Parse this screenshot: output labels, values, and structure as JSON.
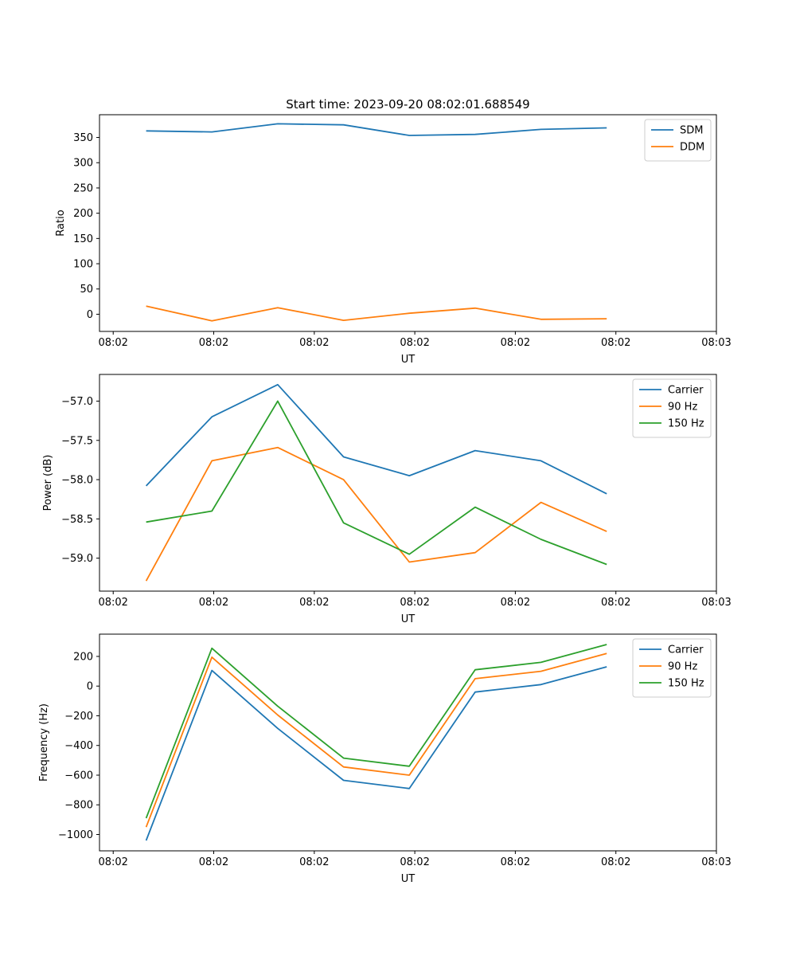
{
  "figure": {
    "title": "Start time: 2023-09-20 08:02:01.688549"
  },
  "chart_data": [
    {
      "type": "line",
      "xlabel": "UT",
      "ylabel": "Ratio",
      "x": [
        0.6,
        1.8,
        3.0,
        4.2,
        5.4,
        6.6,
        7.8,
        9.0
      ],
      "xlim": [
        -0.25,
        11.0
      ],
      "x_ticks": [
        0,
        1.833,
        3.667,
        5.5,
        7.333,
        9.167,
        11.0
      ],
      "x_tick_labels": [
        "08:02",
        "08:02",
        "08:02",
        "08:02",
        "08:02",
        "08:02",
        "08:03"
      ],
      "ylim": [
        -34,
        395
      ],
      "y_ticks": [
        0,
        50,
        100,
        150,
        200,
        250,
        300,
        350
      ],
      "y_tick_labels": [
        "0",
        "50",
        "100",
        "150",
        "200",
        "250",
        "300",
        "350"
      ],
      "legend": "top-right",
      "series": [
        {
          "name": "SDM",
          "color": "#1f77b4",
          "values": [
            363,
            361,
            377,
            375,
            354,
            356,
            366,
            369
          ]
        },
        {
          "name": "DDM",
          "color": "#ff7f0e",
          "values": [
            16,
            -13,
            13,
            -12,
            2,
            12,
            -10,
            -9
          ]
        }
      ]
    },
    {
      "type": "line",
      "xlabel": "UT",
      "ylabel": "Power (dB)",
      "x": [
        0.6,
        1.8,
        3.0,
        4.2,
        5.4,
        6.6,
        7.8,
        9.0
      ],
      "xlim": [
        -0.25,
        11.0
      ],
      "x_ticks": [
        0,
        1.833,
        3.667,
        5.5,
        7.333,
        9.167,
        11.0
      ],
      "x_tick_labels": [
        "08:02",
        "08:02",
        "08:02",
        "08:02",
        "08:02",
        "08:02",
        "08:03"
      ],
      "ylim": [
        -59.42,
        -56.66
      ],
      "y_ticks": [
        -59.0,
        -58.5,
        -58.0,
        -57.5,
        -57.0
      ],
      "y_tick_labels": [
        "−59.0",
        "−58.5",
        "−58.0",
        "−57.5",
        "−57.0"
      ],
      "legend": "top-right",
      "series": [
        {
          "name": "Carrier",
          "color": "#1f77b4",
          "values": [
            -58.08,
            -57.2,
            -56.79,
            -57.71,
            -57.95,
            -57.63,
            -57.76,
            -58.18
          ]
        },
        {
          "name": "90 Hz",
          "color": "#ff7f0e",
          "values": [
            -59.29,
            -57.76,
            -57.59,
            -58.0,
            -59.05,
            -58.93,
            -58.29,
            -58.66
          ]
        },
        {
          "name": "150 Hz",
          "color": "#2ca02c",
          "values": [
            -58.54,
            -58.4,
            -57.0,
            -58.55,
            -58.95,
            -58.35,
            -58.76,
            -59.08
          ]
        }
      ]
    },
    {
      "type": "line",
      "xlabel": "UT",
      "ylabel": "Frequency (Hz)",
      "x": [
        0.6,
        1.8,
        3.0,
        4.2,
        5.4,
        6.6,
        7.8,
        9.0
      ],
      "xlim": [
        -0.25,
        11.0
      ],
      "x_ticks": [
        0,
        1.833,
        3.667,
        5.5,
        7.333,
        9.167,
        11.0
      ],
      "x_tick_labels": [
        "08:02",
        "08:02",
        "08:02",
        "08:02",
        "08:02",
        "08:02",
        "08:03"
      ],
      "ylim": [
        -1110,
        350
      ],
      "y_ticks": [
        -1000,
        -800,
        -600,
        -400,
        -200,
        0,
        200
      ],
      "y_tick_labels": [
        "−1000",
        "−800",
        "−600",
        "−400",
        "−200",
        "0",
        "200"
      ],
      "legend": "top-right",
      "series": [
        {
          "name": "Carrier",
          "color": "#1f77b4",
          "values": [
            -1040,
            105,
            -285,
            -635,
            -690,
            -40,
            10,
            130
          ]
        },
        {
          "name": "90 Hz",
          "color": "#ff7f0e",
          "values": [
            -950,
            195,
            -195,
            -545,
            -600,
            50,
            100,
            220
          ]
        },
        {
          "name": "150 Hz",
          "color": "#2ca02c",
          "values": [
            -890,
            255,
            -135,
            -485,
            -540,
            110,
            160,
            280
          ]
        }
      ]
    }
  ]
}
